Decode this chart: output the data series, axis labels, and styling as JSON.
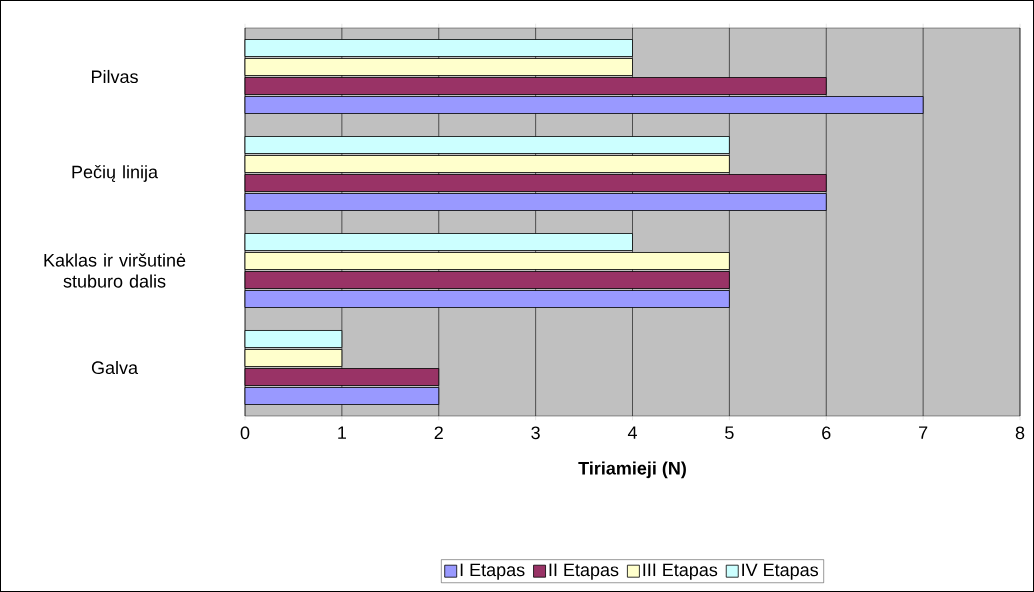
{
  "chart_data": {
    "type": "bar",
    "orientation": "horizontal",
    "xlabel": "Tiriamieji (N)",
    "categories": [
      "Pilvas",
      "Pečių linija",
      "Kaklas ir viršutinė stuburo dalis",
      "Galva"
    ],
    "series": [
      {
        "name": "I Etapas",
        "color": "#9999ff",
        "values": [
          7,
          6,
          5,
          2
        ]
      },
      {
        "name": "II Etapas",
        "color": "#993366",
        "values": [
          6,
          6,
          5,
          2
        ]
      },
      {
        "name": "III Etapas",
        "color": "#ffffcc",
        "values": [
          4,
          5,
          5,
          1
        ]
      },
      {
        "name": "IV Etapas",
        "color": "#ccffff",
        "values": [
          4,
          5,
          4,
          1
        ]
      }
    ],
    "xlim": [
      0,
      8
    ],
    "xticks": [
      0,
      1,
      2,
      3,
      4,
      5,
      6,
      7,
      8
    ],
    "grid": "x",
    "legend": "bottom"
  }
}
